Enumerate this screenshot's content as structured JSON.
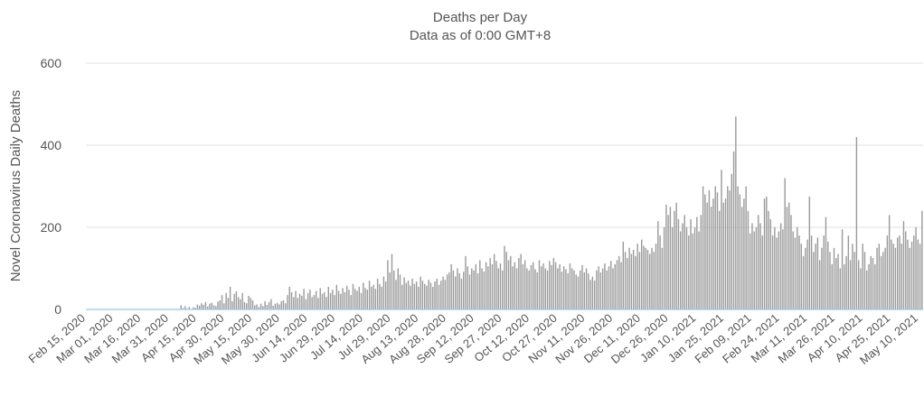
{
  "chart_data": {
    "type": "bar",
    "title": "Deaths per Day",
    "subtitle": "Data as of 0:00 GMT+8",
    "xlabel": "",
    "ylabel": "Novel Coronavirus Daily Deaths",
    "ylim": [
      0,
      600
    ],
    "y_ticks": [
      0,
      200,
      400,
      600
    ],
    "grid": true,
    "legend": "none",
    "bar_color": "#9a9a9a",
    "baseline_color": "#9dc3e6",
    "x_start_date": "2020-02-15",
    "x_end_date": "2021-05-14",
    "x_tick_labels": [
      "Feb 15, 2020",
      "Mar 01, 2020",
      "Mar 16, 2020",
      "Mar 31, 2020",
      "Apr 15, 2020",
      "Apr 30, 2020",
      "May 15, 2020",
      "May 30, 2020",
      "Jun 14, 2020",
      "Jun 29, 2020",
      "Jul 14, 2020",
      "Jul 29, 2020",
      "Aug 13, 2020",
      "Aug 28, 2020",
      "Sep 12, 2020",
      "Sep 27, 2020",
      "Oct 12, 2020",
      "Oct 27, 2020",
      "Nov 11, 2020",
      "Nov 26, 2020",
      "Dec 11, 2020",
      "Dec 26, 2020",
      "Jan 10, 2021",
      "Jan 25, 2021",
      "Feb 09, 2021",
      "Feb 24, 2021",
      "Mar 11, 2021",
      "Mar 26, 2021",
      "Apr 10, 2021",
      "Apr 25, 2021",
      "May 10, 2021"
    ],
    "series": [
      {
        "name": "",
        "values": [
          0,
          0,
          0,
          0,
          0,
          0,
          0,
          0,
          0,
          0,
          0,
          0,
          0,
          0,
          0,
          0,
          0,
          0,
          0,
          0,
          0,
          0,
          0,
          0,
          0,
          0,
          0,
          0,
          0,
          0,
          0,
          0,
          0,
          0,
          0,
          0,
          0,
          0,
          0,
          0,
          0,
          0,
          0,
          0,
          0,
          0,
          10,
          3,
          8,
          2,
          6,
          1,
          5,
          4,
          12,
          9,
          15,
          11,
          18,
          7,
          14,
          16,
          10,
          8,
          19,
          22,
          35,
          15,
          40,
          28,
          55,
          20,
          38,
          44,
          30,
          25,
          40,
          18,
          15,
          33,
          28,
          22,
          10,
          12,
          6,
          14,
          8,
          20,
          11,
          18,
          25,
          9,
          14,
          16,
          12,
          20,
          22,
          15,
          35,
          55,
          42,
          30,
          45,
          28,
          38,
          33,
          50,
          25,
          40,
          48,
          30,
          35,
          45,
          28,
          52,
          38,
          42,
          30,
          55,
          40,
          48,
          35,
          60,
          45,
          38,
          52,
          42,
          58,
          48,
          35,
          62,
          50,
          45,
          55,
          40,
          65,
          52,
          48,
          70,
          55,
          60,
          50,
          75,
          62,
          55,
          80,
          68,
          120,
          90,
          135,
          95,
          72,
          100,
          85,
          60,
          78,
          65,
          70,
          58,
          75,
          62,
          68,
          55,
          80,
          70,
          62,
          58,
          72,
          65,
          55,
          68,
          75,
          60,
          70,
          80,
          72,
          85,
          90,
          110,
          95,
          80,
          100,
          88,
          75,
          92,
          130,
          105,
          85,
          100,
          95,
          110,
          88,
          120,
          100,
          92,
          115,
          105,
          125,
          110,
          135,
          118,
          100,
          112,
          95,
          155,
          140,
          120,
          130,
          105,
          115,
          100,
          125,
          135,
          110,
          120,
          100,
          95,
          108,
          115,
          98,
          90,
          120,
          105,
          112,
          100,
          95,
          118,
          108,
          125,
          115,
          100,
          110,
          92,
          105,
          98,
          88,
          112,
          100,
          95,
          85,
          80,
          95,
          108,
          90,
          100,
          88,
          72,
          80,
          70,
          95,
          105,
          90,
          100,
          112,
          95,
          105,
          118,
          100,
          110,
          120,
          130,
          115,
          165,
          140,
          125,
          150,
          135,
          145,
          130,
          160,
          140,
          170,
          155,
          150,
          145,
          135,
          150,
          140,
          160,
          215,
          180,
          150,
          200,
          255,
          230,
          250,
          200,
          240,
          260,
          220,
          190,
          210,
          230,
          200,
          180,
          220,
          185,
          200,
          225,
          190,
          230,
          300,
          280,
          260,
          290,
          250,
          270,
          300,
          285,
          240,
          340,
          260,
          270,
          300,
          290,
          330,
          385,
          470,
          300,
          280,
          250,
          270,
          300,
          240,
          185,
          210,
          190,
          200,
          230,
          210,
          180,
          270,
          275,
          240,
          220,
          180,
          200,
          175,
          190,
          210,
          195,
          320,
          250,
          260,
          230,
          190,
          175,
          200,
          180,
          160,
          130,
          150,
          170,
          275,
          180,
          140,
          160,
          175,
          120,
          150,
          180,
          225,
          165,
          140,
          110,
          150,
          125,
          135,
          100,
          195,
          110,
          130,
          180,
          120,
          160,
          140,
          420,
          120,
          100,
          160,
          140,
          95,
          110,
          130,
          125,
          110,
          150,
          160,
          130,
          140,
          150,
          180,
          230,
          170,
          160,
          150,
          175,
          180,
          160,
          215,
          190,
          170,
          150,
          165,
          180,
          200,
          170,
          160,
          240
        ]
      }
    ]
  }
}
